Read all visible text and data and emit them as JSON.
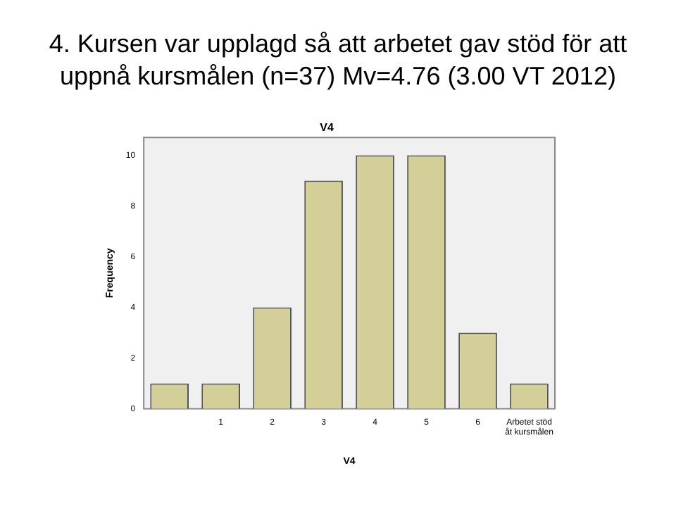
{
  "chart_data": {
    "type": "bar",
    "title": "4. Kursen var upplagd så att arbetet gav stöd för att uppnå kursmålen (n=37) Mv=4.76 (3.00 VT 2012)",
    "subtitle": "V4",
    "xlabel": "V4",
    "ylabel": "Frequency",
    "categories": [
      null,
      "1",
      "2",
      "3",
      "4",
      "5",
      "6",
      "Arbetet stöd åt kursmålen"
    ],
    "values": [
      1,
      1,
      4,
      9,
      10,
      10,
      3,
      1
    ],
    "color": "#d4cf98",
    "ylim": [
      0,
      10.7
    ],
    "yticks": [
      0,
      2,
      4,
      6,
      8,
      10
    ],
    "grid": false,
    "legend": false
  }
}
